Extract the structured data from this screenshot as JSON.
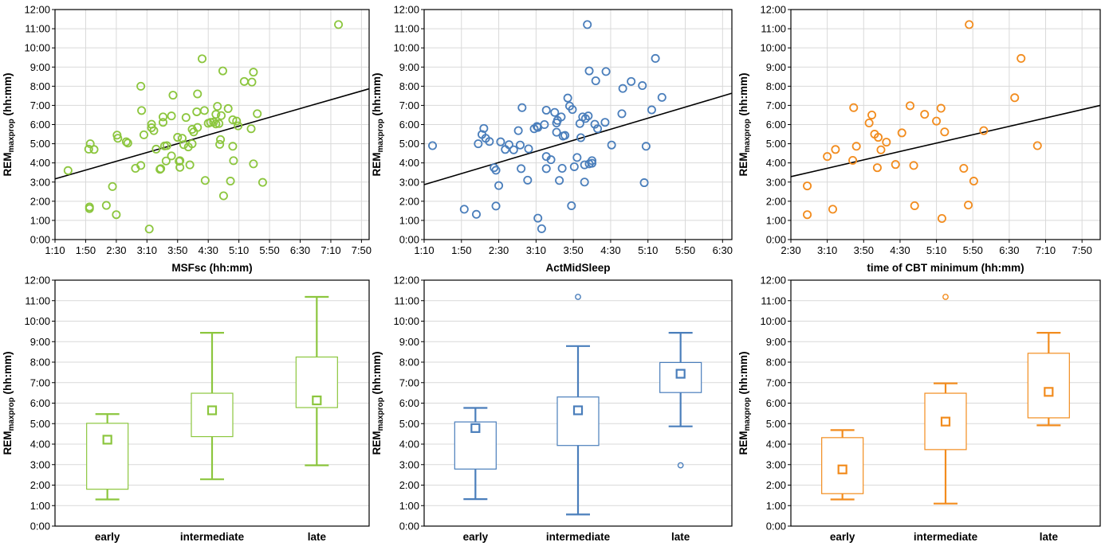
{
  "chart_data": [
    {
      "type": "scatter",
      "color": "#8CC63E",
      "xlabel": "MSFsc (hh:mm)",
      "ylabel": {
        "main": "REM",
        "sub": "maxprop",
        "unit": " (hh:mm)"
      },
      "xlim": [
        70,
        480
      ],
      "ylim": [
        0,
        720
      ],
      "x_ticks": [
        "1:10",
        "1:50",
        "2:30",
        "3:10",
        "3:50",
        "4:30",
        "5:10",
        "5:50",
        "6:30",
        "7:10",
        "7:50"
      ],
      "y_ticks": [
        "0:00",
        "1:00",
        "2:00",
        "3:00",
        "4:00",
        "5:00",
        "6:00",
        "7:00",
        "8:00",
        "9:00",
        "10:00",
        "11:00",
        "12:00"
      ],
      "grid": true,
      "fit_line": [
        [
          70,
          190
        ],
        [
          480,
          472
        ]
      ],
      "points": [
        [
          87,
          216
        ],
        [
          115,
          102
        ],
        [
          115,
          97
        ],
        [
          114,
          283
        ],
        [
          116,
          300
        ],
        [
          121,
          282
        ],
        [
          137,
          107
        ],
        [
          145,
          166
        ],
        [
          151,
          327
        ],
        [
          152,
          317
        ],
        [
          150,
          78
        ],
        [
          163,
          306
        ],
        [
          165,
          302
        ],
        [
          175,
          223
        ],
        [
          182,
          480
        ],
        [
          183,
          404
        ],
        [
          182,
          232
        ],
        [
          186,
          328
        ],
        [
          193,
          33
        ],
        [
          196,
          350
        ],
        [
          196,
          361
        ],
        [
          199,
          341
        ],
        [
          202,
          283
        ],
        [
          207,
          220
        ],
        [
          208,
          222
        ],
        [
          211,
          367
        ],
        [
          211,
          384
        ],
        [
          213,
          293
        ],
        [
          215,
          246
        ],
        [
          216,
          294
        ],
        [
          222,
          262
        ],
        [
          222,
          387
        ],
        [
          224,
          452
        ],
        [
          230,
          320
        ],
        [
          233,
          247
        ],
        [
          233,
          226
        ],
        [
          232,
          245
        ],
        [
          236,
          317
        ],
        [
          238,
          297
        ],
        [
          241,
          382
        ],
        [
          244,
          290
        ],
        [
          246,
          234
        ],
        [
          249,
          300
        ],
        [
          251,
          337
        ],
        [
          249,
          345
        ],
        [
          255,
          400
        ],
        [
          256,
          456
        ],
        [
          256,
          351
        ],
        [
          262,
          566
        ],
        [
          265,
          404
        ],
        [
          266,
          185
        ],
        [
          270,
          364
        ],
        [
          273,
          367
        ],
        [
          277,
          368
        ],
        [
          280,
          362
        ],
        [
          280,
          392
        ],
        [
          282,
          417
        ],
        [
          284,
          363
        ],
        [
          285,
          298
        ],
        [
          286,
          313
        ],
        [
          287,
          388
        ],
        [
          289,
          528
        ],
        [
          290,
          137
        ],
        [
          296,
          410
        ],
        [
          299,
          183
        ],
        [
          302,
          375
        ],
        [
          302,
          292
        ],
        [
          303,
          247
        ],
        [
          307,
          371
        ],
        [
          309,
          356
        ],
        [
          317,
          495
        ],
        [
          326,
          347
        ],
        [
          327,
          493
        ],
        [
          329,
          524
        ],
        [
          329,
          237
        ],
        [
          334,
          394
        ],
        [
          341,
          179
        ],
        [
          440,
          673
        ]
      ]
    },
    {
      "type": "scatter",
      "color": "#4A7EBB",
      "xlabel": "ActMidSleep",
      "ylabel": {
        "main": "REM",
        "sub": "maxprop",
        "unit": " (hh:mm)"
      },
      "xlim": [
        70,
        400
      ],
      "ylim": [
        0,
        720
      ],
      "x_ticks": [
        "1:10",
        "1:50",
        "2:30",
        "3:10",
        "3:50",
        "4:30",
        "5:10",
        "5:50",
        "6:30"
      ],
      "y_ticks": [
        "0:00",
        "1:00",
        "2:00",
        "3:00",
        "4:00",
        "5:00",
        "6:00",
        "7:00",
        "8:00",
        "9:00",
        "10:00",
        "11:00",
        "12:00"
      ],
      "grid": true,
      "fit_line": [
        [
          70,
          172
        ],
        [
          400,
          458
        ]
      ],
      "points": [
        [
          79,
          294
        ],
        [
          113,
          95
        ],
        [
          126,
          79
        ],
        [
          128,
          300
        ],
        [
          132,
          329
        ],
        [
          134,
          348
        ],
        [
          136,
          317
        ],
        [
          140,
          307
        ],
        [
          145,
          225
        ],
        [
          147,
          105
        ],
        [
          147,
          217
        ],
        [
          150,
          169
        ],
        [
          152,
          306
        ],
        [
          157,
          282
        ],
        [
          161,
          297
        ],
        [
          166,
          281
        ],
        [
          171,
          341
        ],
        [
          173,
          296
        ],
        [
          174,
          222
        ],
        [
          175,
          413
        ],
        [
          181,
          186
        ],
        [
          182,
          284
        ],
        [
          188,
          347
        ],
        [
          191,
          354
        ],
        [
          192,
          67
        ],
        [
          192,
          351
        ],
        [
          196,
          34
        ],
        [
          199,
          360
        ],
        [
          201,
          405
        ],
        [
          201,
          260
        ],
        [
          201,
          222
        ],
        [
          206,
          250
        ],
        [
          210,
          398
        ],
        [
          212,
          336
        ],
        [
          212,
          365
        ],
        [
          213,
          373
        ],
        [
          215,
          185
        ],
        [
          217,
          384
        ],
        [
          218,
          223
        ],
        [
          219,
          324
        ],
        [
          221,
          326
        ],
        [
          224,
          443
        ],
        [
          226,
          418
        ],
        [
          228,
          106
        ],
        [
          229,
          407
        ],
        [
          231,
          228
        ],
        [
          234,
          257
        ],
        [
          237,
          363
        ],
        [
          238,
          319
        ],
        [
          240,
          384
        ],
        [
          242,
          234
        ],
        [
          242,
          180
        ],
        [
          243,
          379
        ],
        [
          246,
          387
        ],
        [
          245,
          673
        ],
        [
          247,
          237
        ],
        [
          247,
          528
        ],
        [
          250,
          247
        ],
        [
          250,
          239
        ],
        [
          253,
          361
        ],
        [
          254,
          497
        ],
        [
          256,
          347
        ],
        [
          264,
          367
        ],
        [
          265,
          526
        ],
        [
          271,
          296
        ],
        [
          282,
          394
        ],
        [
          283,
          473
        ],
        [
          292,
          495
        ],
        [
          304,
          482
        ],
        [
          306,
          178
        ],
        [
          308,
          292
        ],
        [
          314,
          406
        ],
        [
          318,
          567
        ],
        [
          325,
          445
        ]
      ]
    },
    {
      "type": "scatter",
      "color": "#F28C1E",
      "xlabel": "time of CBT minimum (hh:mm)",
      "ylabel": {
        "main": "REM",
        "sub": "maxprop",
        "unit": " (hh:mm)"
      },
      "xlim": [
        150,
        490
      ],
      "ylim": [
        0,
        720
      ],
      "x_ticks": [
        "2:30",
        "3:10",
        "3:50",
        "4:30",
        "5:10",
        "5:50",
        "6:30",
        "7:10",
        "7:50"
      ],
      "y_ticks": [
        "0:00",
        "1:00",
        "2:00",
        "3:00",
        "4:00",
        "5:00",
        "6:00",
        "7:00",
        "8:00",
        "9:00",
        "10:00",
        "11:00",
        "12:00"
      ],
      "grid": true,
      "fit_line": [
        [
          150,
          197
        ],
        [
          490,
          420
        ]
      ],
      "points": [
        [
          168,
          168
        ],
        [
          168,
          78
        ],
        [
          190,
          260
        ],
        [
          196,
          95
        ],
        [
          199,
          282
        ],
        [
          218,
          248
        ],
        [
          219,
          413
        ],
        [
          222,
          292
        ],
        [
          236,
          365
        ],
        [
          239,
          390
        ],
        [
          242,
          330
        ],
        [
          245,
          225
        ],
        [
          246,
          320
        ],
        [
          249,
          281
        ],
        [
          255,
          305
        ],
        [
          265,
          235
        ],
        [
          272,
          334
        ],
        [
          281,
          419
        ],
        [
          285,
          232
        ],
        [
          286,
          106
        ],
        [
          297,
          392
        ],
        [
          310,
          371
        ],
        [
          315,
          411
        ],
        [
          316,
          66
        ],
        [
          319,
          337
        ],
        [
          340,
          223
        ],
        [
          345,
          108
        ],
        [
          346,
          673
        ],
        [
          351,
          183
        ],
        [
          362,
          341
        ],
        [
          396,
          444
        ],
        [
          403,
          567
        ],
        [
          421,
          294
        ]
      ]
    },
    {
      "type": "box",
      "color": "#8CC63E",
      "categories": [
        "early",
        "intermediate",
        "late"
      ],
      "ylabel": {
        "main": "REM",
        "sub": "maxprop",
        "unit": " (hh:mm)"
      },
      "ylim": [
        0,
        720
      ],
      "y_ticks": [
        "0:00",
        "1:00",
        "2:00",
        "3:00",
        "4:00",
        "5:00",
        "6:00",
        "7:00",
        "8:00",
        "9:00",
        "10:00",
        "11:00",
        "12:00"
      ],
      "grid": true,
      "boxes": [
        {
          "q1": 108,
          "q3": 301,
          "low": 78,
          "high": 328,
          "center": 253,
          "outliers": []
        },
        {
          "q1": 262,
          "q3": 389,
          "low": 137,
          "high": 566,
          "center": 339,
          "outliers": []
        },
        {
          "q1": 347,
          "q3": 495,
          "low": 178,
          "high": 671,
          "center": 368,
          "outliers": []
        }
      ]
    },
    {
      "type": "box",
      "color": "#4A7EBB",
      "categories": [
        "early",
        "intermediate",
        "late"
      ],
      "ylabel": {
        "main": "REM",
        "sub": "maxprop",
        "unit": " (hh:mm)"
      },
      "ylim": [
        0,
        720
      ],
      "y_ticks": [
        "0:00",
        "1:00",
        "2:00",
        "3:00",
        "4:00",
        "5:00",
        "6:00",
        "7:00",
        "8:00",
        "9:00",
        "10:00",
        "11:00",
        "12:00"
      ],
      "grid": true,
      "boxes": [
        {
          "q1": 167,
          "q3": 305,
          "low": 79,
          "high": 346,
          "center": 287,
          "outliers": []
        },
        {
          "q1": 236,
          "q3": 378,
          "low": 34,
          "high": 527,
          "center": 339,
          "outliers": [
            671
          ]
        },
        {
          "q1": 391,
          "q3": 479,
          "low": 292,
          "high": 566,
          "center": 446,
          "outliers": [
            178
          ]
        }
      ]
    },
    {
      "type": "box",
      "color": "#F28C1E",
      "categories": [
        "early",
        "intermediate",
        "late"
      ],
      "ylabel": {
        "main": "REM",
        "sub": "maxprop",
        "unit": " (hh:mm)"
      },
      "ylim": [
        0,
        720
      ],
      "y_ticks": [
        "0:00",
        "1:00",
        "2:00",
        "3:00",
        "4:00",
        "5:00",
        "6:00",
        "7:00",
        "8:00",
        "9:00",
        "10:00",
        "11:00",
        "12:00"
      ],
      "grid": true,
      "boxes": [
        {
          "q1": 95,
          "q3": 259,
          "low": 78,
          "high": 281,
          "center": 166,
          "outliers": []
        },
        {
          "q1": 224,
          "q3": 389,
          "low": 66,
          "high": 418,
          "center": 306,
          "outliers": [
            671
          ]
        },
        {
          "q1": 317,
          "q3": 506,
          "low": 295,
          "high": 566,
          "center": 393,
          "outliers": []
        }
      ]
    }
  ]
}
